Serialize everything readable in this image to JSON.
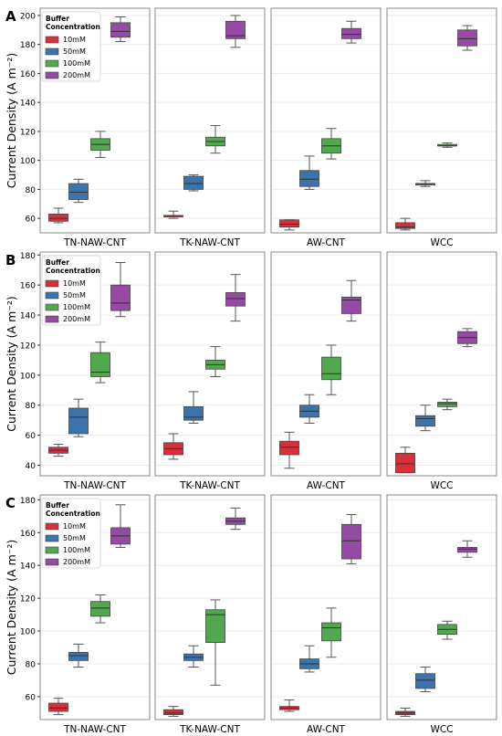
{
  "colors": {
    "series": [
      "#d7303b",
      "#3b73ad",
      "#52a84f",
      "#954aa3"
    ],
    "grid": "#ececec",
    "frame": "#888888",
    "whisker": "#555555"
  },
  "chart_data": [
    {
      "type": "box",
      "panel_label": "A",
      "ylabel": "Current Density (A m⁻²)",
      "ylim": [
        50,
        205
      ],
      "yticks": [
        60,
        80,
        100,
        120,
        140,
        160,
        180,
        200
      ],
      "categories": [
        "TN-NAW-CNT",
        "TK-NAW-CNT",
        "AW-CNT",
        "WCC"
      ],
      "legend": {
        "title_lines": [
          "Buffer",
          "Concentration"
        ],
        "placement": "top-left"
      },
      "series": [
        {
          "name": "10mM",
          "boxes": [
            [
              57,
              58,
              60,
              63,
              67
            ],
            [
              60,
              61,
              62,
              62,
              65
            ],
            [
              52,
              54,
              56,
              59,
              59
            ],
            [
              52,
              53,
              54,
              57,
              60
            ]
          ]
        },
        {
          "name": "50mM",
          "boxes": [
            [
              71,
              73,
              78,
              84,
              87
            ],
            [
              79,
              80,
              84,
              89,
              90
            ],
            [
              80,
              82,
              87,
              93,
              103
            ],
            [
              82,
              83,
              84,
              84,
              86
            ]
          ]
        },
        {
          "name": "100mM",
          "boxes": [
            [
              102,
              107,
              111,
              115,
              120
            ],
            [
              105,
              110,
              113,
              116,
              124
            ],
            [
              101,
              105,
              110,
              115,
              122
            ],
            [
              109,
              110,
              110,
              111,
              112
            ]
          ]
        },
        {
          "name": "200mM",
          "boxes": [
            [
              182,
              185,
              189,
              195,
              199
            ],
            [
              178,
              184,
              186,
              196,
              200
            ],
            [
              181,
              184,
              187,
              191,
              196
            ],
            [
              176,
              179,
              184,
              190,
              193
            ]
          ]
        }
      ]
    },
    {
      "type": "box",
      "panel_label": "B",
      "ylabel": "Current Density (A m⁻²)",
      "ylim": [
        33,
        182
      ],
      "yticks": [
        40,
        60,
        80,
        100,
        120,
        140,
        160,
        180
      ],
      "categories": [
        "TN-NAW-CNT",
        "TK-NAW-CNT",
        "AW-CNT",
        "WCC"
      ],
      "legend": {
        "title_lines": [
          "Buffer",
          "Concentration"
        ],
        "placement": "top-left"
      },
      "series": [
        {
          "name": "10mM",
          "boxes": [
            [
              46,
              48,
              50,
              52,
              54
            ],
            [
              44,
              47,
              51,
              55,
              61
            ],
            [
              38,
              47,
              52,
              56,
              62
            ],
            [
              35,
              35,
              41,
              48,
              52
            ]
          ]
        },
        {
          "name": "50mM",
          "boxes": [
            [
              59,
              61,
              72,
              78,
              84
            ],
            [
              68,
              70,
              72,
              79,
              89
            ],
            [
              68,
              72,
              76,
              80,
              87
            ],
            [
              63,
              66,
              71,
              73,
              80
            ]
          ]
        },
        {
          "name": "100mM",
          "boxes": [
            [
              95,
              99,
              102,
              115,
              122
            ],
            [
              99,
              104,
              107,
              110,
              119
            ],
            [
              87,
              97,
              101,
              112,
              120
            ],
            [
              77,
              79,
              81,
              82,
              84
            ]
          ]
        },
        {
          "name": "200mM",
          "boxes": [
            [
              139,
              143,
              148,
              160,
              175
            ],
            [
              136,
              146,
              151,
              155,
              167
            ],
            [
              136,
              141,
              150,
              152,
              163
            ],
            [
              119,
              121,
              125,
              129,
              131
            ]
          ]
        }
      ]
    },
    {
      "type": "box",
      "panel_label": "C",
      "ylabel": "Current Density (A m⁻²)",
      "ylim": [
        46,
        183
      ],
      "yticks": [
        60,
        80,
        100,
        120,
        140,
        160,
        180
      ],
      "categories": [
        "TN-NAW-CNT",
        "TK-NAW-CNT",
        "AW-CNT",
        "WCC"
      ],
      "legend": {
        "title_lines": [
          "Buffer",
          "Concentration"
        ],
        "placement": "top-left"
      },
      "series": [
        {
          "name": "10mM",
          "boxes": [
            [
              49,
              51,
              53,
              56,
              59
            ],
            [
              48,
              49,
              50,
              52,
              54
            ],
            [
              51,
              52,
              53,
              54,
              58
            ],
            [
              48,
              49,
              50,
              51,
              53
            ]
          ]
        },
        {
          "name": "50mM",
          "boxes": [
            [
              78,
              82,
              85,
              87,
              92
            ],
            [
              78,
              82,
              84,
              86,
              91
            ],
            [
              75,
              77,
              80,
              83,
              91
            ],
            [
              63,
              65,
              70,
              74,
              78
            ]
          ]
        },
        {
          "name": "100mM",
          "boxes": [
            [
              105,
              109,
              114,
              118,
              122
            ],
            [
              67,
              93,
              110,
              113,
              119
            ],
            [
              84,
              94,
              102,
              105,
              114
            ],
            [
              95,
              98,
              101,
              104,
              106
            ]
          ]
        },
        {
          "name": "200mM",
          "boxes": [
            [
              151,
              153,
              158,
              163,
              177
            ],
            [
              162,
              165,
              167,
              169,
              175
            ],
            [
              141,
              144,
              155,
              165,
              171
            ],
            [
              145,
              148,
              150,
              151,
              155
            ]
          ]
        }
      ]
    }
  ]
}
